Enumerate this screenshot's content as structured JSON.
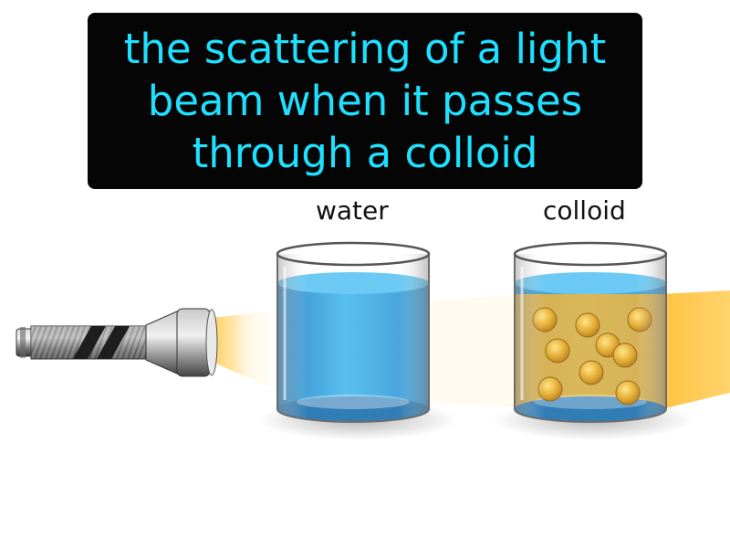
{
  "caption": {
    "lines": [
      "the scattering of a light",
      "beam when it passes",
      "through a colloid"
    ]
  },
  "labels": {
    "water": "water",
    "colloid": "colloid"
  },
  "colors": {
    "caption_background": "#050505",
    "caption_text": "#1ee0ff",
    "light_beam": "#ffc94a",
    "water": "#2fa6e0",
    "colloid_particles": "#e0a21c"
  },
  "icons": {
    "light_source": "flashlight-icon"
  }
}
